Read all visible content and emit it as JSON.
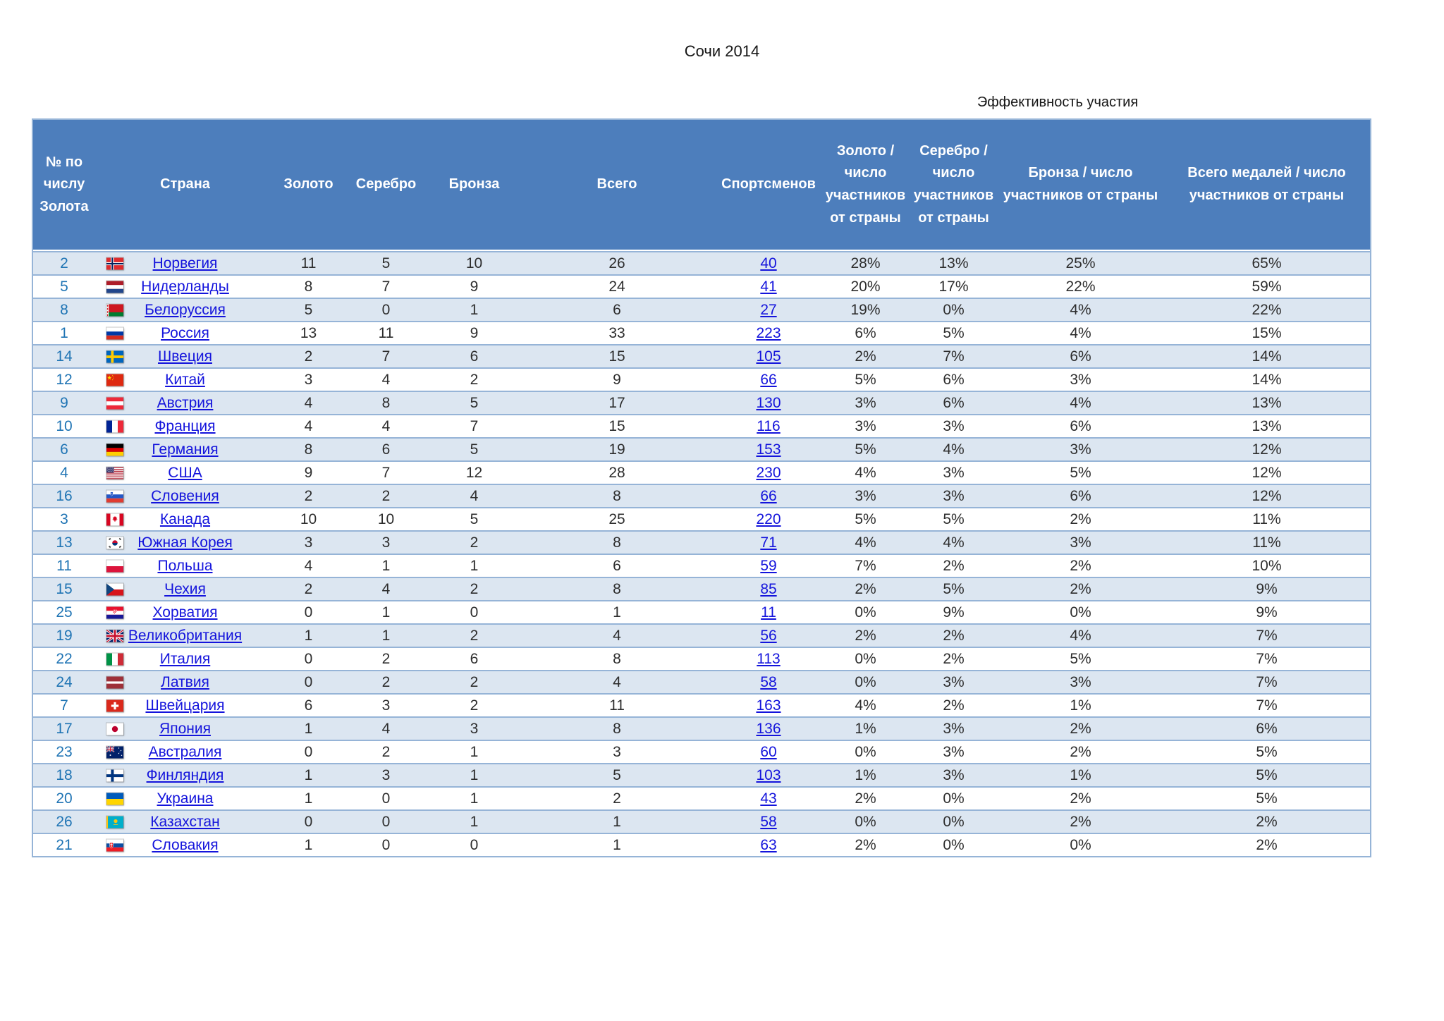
{
  "page": {
    "title": "Сочи 2014",
    "section_label": "Эффективность участия"
  },
  "colors": {
    "header_bg": "#4D7EBC",
    "row_alt_bg": "#DCE6F1",
    "grid_line": "#96B4D7",
    "rank_text": "#1F74B4",
    "link_text": "#1414DC",
    "body_text": "#2D2D2D"
  },
  "table": {
    "columns": [
      {
        "key": "rank",
        "label": "№ по числу Золота"
      },
      {
        "key": "country",
        "label": "Страна"
      },
      {
        "key": "gold",
        "label": "Золото"
      },
      {
        "key": "silver",
        "label": "Серебро"
      },
      {
        "key": "bronze",
        "label": "Бронза"
      },
      {
        "key": "total",
        "label": "Всего"
      },
      {
        "key": "athletes",
        "label": "Спортсменов"
      },
      {
        "key": "gold_pct",
        "label": "Золото / число участников от страны"
      },
      {
        "key": "silver_pct",
        "label": "Серебро / число участников от страны"
      },
      {
        "key": "bronze_pct",
        "label": "Бронза / число участников от страны"
      },
      {
        "key": "total_pct",
        "label": "Всего медалей / число участников от страны"
      }
    ],
    "rows": [
      {
        "rank": "2",
        "flag": "norway-flag",
        "country": "Норвегия",
        "gold": "11",
        "silver": "5",
        "bronze": "10",
        "total": "26",
        "athletes": "40",
        "gold_pct": "28%",
        "silver_pct": "13%",
        "bronze_pct": "25%",
        "total_pct": "65%"
      },
      {
        "rank": "5",
        "flag": "netherlands-flag",
        "country": "Нидерланды",
        "gold": "8",
        "silver": "7",
        "bronze": "9",
        "total": "24",
        "athletes": "41",
        "gold_pct": "20%",
        "silver_pct": "17%",
        "bronze_pct": "22%",
        "total_pct": "59%"
      },
      {
        "rank": "8",
        "flag": "belarus-flag",
        "country": "Белоруссия",
        "gold": "5",
        "silver": "0",
        "bronze": "1",
        "total": "6",
        "athletes": "27",
        "gold_pct": "19%",
        "silver_pct": "0%",
        "bronze_pct": "4%",
        "total_pct": "22%"
      },
      {
        "rank": "1",
        "flag": "russia-flag",
        "country": "Россия",
        "gold": "13",
        "silver": "11",
        "bronze": "9",
        "total": "33",
        "athletes": "223",
        "gold_pct": "6%",
        "silver_pct": "5%",
        "bronze_pct": "4%",
        "total_pct": "15%"
      },
      {
        "rank": "14",
        "flag": "sweden-flag",
        "country": "Швеция",
        "gold": "2",
        "silver": "7",
        "bronze": "6",
        "total": "15",
        "athletes": "105",
        "gold_pct": "2%",
        "silver_pct": "7%",
        "bronze_pct": "6%",
        "total_pct": "14%"
      },
      {
        "rank": "12",
        "flag": "china-flag",
        "country": "Китай",
        "gold": "3",
        "silver": "4",
        "bronze": "2",
        "total": "9",
        "athletes": "66",
        "gold_pct": "5%",
        "silver_pct": "6%",
        "bronze_pct": "3%",
        "total_pct": "14%"
      },
      {
        "rank": "9",
        "flag": "austria-flag",
        "country": "Австрия",
        "gold": "4",
        "silver": "8",
        "bronze": "5",
        "total": "17",
        "athletes": "130",
        "gold_pct": "3%",
        "silver_pct": "6%",
        "bronze_pct": "4%",
        "total_pct": "13%"
      },
      {
        "rank": "10",
        "flag": "france-flag",
        "country": "Франция",
        "gold": "4",
        "silver": "4",
        "bronze": "7",
        "total": "15",
        "athletes": "116",
        "gold_pct": "3%",
        "silver_pct": "3%",
        "bronze_pct": "6%",
        "total_pct": "13%"
      },
      {
        "rank": "6",
        "flag": "germany-flag",
        "country": "Германия",
        "gold": "8",
        "silver": "6",
        "bronze": "5",
        "total": "19",
        "athletes": "153",
        "gold_pct": "5%",
        "silver_pct": "4%",
        "bronze_pct": "3%",
        "total_pct": "12%"
      },
      {
        "rank": "4",
        "flag": "usa-flag",
        "country": "США",
        "gold": "9",
        "silver": "7",
        "bronze": "12",
        "total": "28",
        "athletes": "230",
        "gold_pct": "4%",
        "silver_pct": "3%",
        "bronze_pct": "5%",
        "total_pct": "12%"
      },
      {
        "rank": "16",
        "flag": "slovenia-flag",
        "country": "Словения",
        "gold": "2",
        "silver": "2",
        "bronze": "4",
        "total": "8",
        "athletes": "66",
        "gold_pct": "3%",
        "silver_pct": "3%",
        "bronze_pct": "6%",
        "total_pct": "12%"
      },
      {
        "rank": "3",
        "flag": "canada-flag",
        "country": "Канада",
        "gold": "10",
        "silver": "10",
        "bronze": "5",
        "total": "25",
        "athletes": "220",
        "gold_pct": "5%",
        "silver_pct": "5%",
        "bronze_pct": "2%",
        "total_pct": "11%"
      },
      {
        "rank": "13",
        "flag": "south-korea-flag",
        "country": "Южная Корея",
        "gold": "3",
        "silver": "3",
        "bronze": "2",
        "total": "8",
        "athletes": "71",
        "gold_pct": "4%",
        "silver_pct": "4%",
        "bronze_pct": "3%",
        "total_pct": "11%"
      },
      {
        "rank": "11",
        "flag": "poland-flag",
        "country": "Польша",
        "gold": "4",
        "silver": "1",
        "bronze": "1",
        "total": "6",
        "athletes": "59",
        "gold_pct": "7%",
        "silver_pct": "2%",
        "bronze_pct": "2%",
        "total_pct": "10%"
      },
      {
        "rank": "15",
        "flag": "czech-flag",
        "country": "Чехия",
        "gold": "2",
        "silver": "4",
        "bronze": "2",
        "total": "8",
        "athletes": "85",
        "gold_pct": "2%",
        "silver_pct": "5%",
        "bronze_pct": "2%",
        "total_pct": "9%"
      },
      {
        "rank": "25",
        "flag": "croatia-flag",
        "country": "Хорватия",
        "gold": "0",
        "silver": "1",
        "bronze": "0",
        "total": "1",
        "athletes": "11",
        "gold_pct": "0%",
        "silver_pct": "9%",
        "bronze_pct": "0%",
        "total_pct": "9%"
      },
      {
        "rank": "19",
        "flag": "uk-flag",
        "country": "Великобритания",
        "gold": "1",
        "silver": "1",
        "bronze": "2",
        "total": "4",
        "athletes": "56",
        "gold_pct": "2%",
        "silver_pct": "2%",
        "bronze_pct": "4%",
        "total_pct": "7%"
      },
      {
        "rank": "22",
        "flag": "italy-flag",
        "country": "Италия",
        "gold": "0",
        "silver": "2",
        "bronze": "6",
        "total": "8",
        "athletes": "113",
        "gold_pct": "0%",
        "silver_pct": "2%",
        "bronze_pct": "5%",
        "total_pct": "7%"
      },
      {
        "rank": "24",
        "flag": "latvia-flag",
        "country": "Латвия",
        "gold": "0",
        "silver": "2",
        "bronze": "2",
        "total": "4",
        "athletes": "58",
        "gold_pct": "0%",
        "silver_pct": "3%",
        "bronze_pct": "3%",
        "total_pct": "7%"
      },
      {
        "rank": "7",
        "flag": "switzerland-flag",
        "country": "Швейцария",
        "gold": "6",
        "silver": "3",
        "bronze": "2",
        "total": "11",
        "athletes": "163",
        "gold_pct": "4%",
        "silver_pct": "2%",
        "bronze_pct": "1%",
        "total_pct": "7%"
      },
      {
        "rank": "17",
        "flag": "japan-flag",
        "country": "Япония",
        "gold": "1",
        "silver": "4",
        "bronze": "3",
        "total": "8",
        "athletes": "136",
        "gold_pct": "1%",
        "silver_pct": "3%",
        "bronze_pct": "2%",
        "total_pct": "6%"
      },
      {
        "rank": "23",
        "flag": "australia-flag",
        "country": "Австралия",
        "gold": "0",
        "silver": "2",
        "bronze": "1",
        "total": "3",
        "athletes": "60",
        "gold_pct": "0%",
        "silver_pct": "3%",
        "bronze_pct": "2%",
        "total_pct": "5%"
      },
      {
        "rank": "18",
        "flag": "finland-flag",
        "country": "Финляндия",
        "gold": "1",
        "silver": "3",
        "bronze": "1",
        "total": "5",
        "athletes": "103",
        "gold_pct": "1%",
        "silver_pct": "3%",
        "bronze_pct": "1%",
        "total_pct": "5%"
      },
      {
        "rank": "20",
        "flag": "ukraine-flag",
        "country": "Украина",
        "gold": "1",
        "silver": "0",
        "bronze": "1",
        "total": "2",
        "athletes": "43",
        "gold_pct": "2%",
        "silver_pct": "0%",
        "bronze_pct": "2%",
        "total_pct": "5%"
      },
      {
        "rank": "26",
        "flag": "kazakhstan-flag",
        "country": "Казахстан",
        "gold": "0",
        "silver": "0",
        "bronze": "1",
        "total": "1",
        "athletes": "58",
        "gold_pct": "0%",
        "silver_pct": "0%",
        "bronze_pct": "2%",
        "total_pct": "2%"
      },
      {
        "rank": "21",
        "flag": "slovakia-flag",
        "country": "Словакия",
        "gold": "1",
        "silver": "0",
        "bronze": "0",
        "total": "1",
        "athletes": "63",
        "gold_pct": "2%",
        "silver_pct": "0%",
        "bronze_pct": "0%",
        "total_pct": "2%"
      }
    ]
  }
}
